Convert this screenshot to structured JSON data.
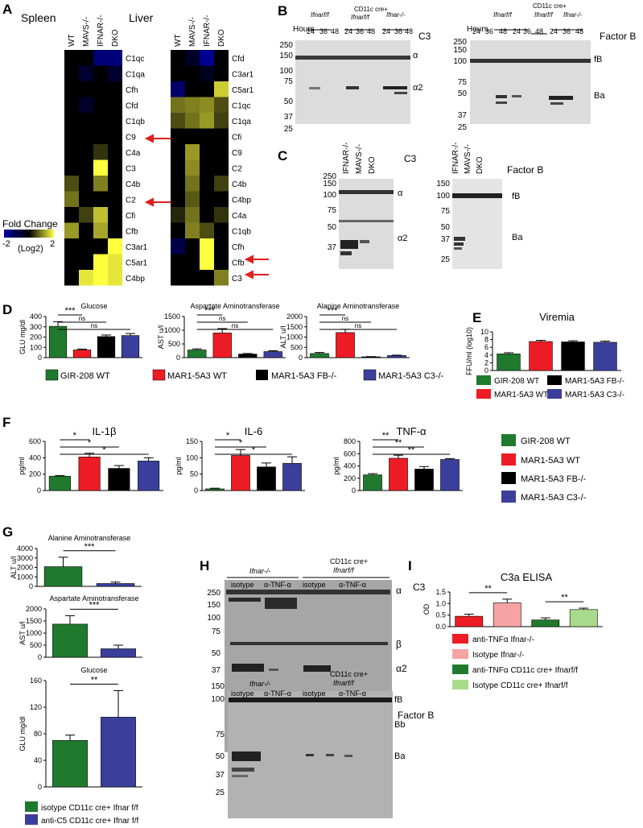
{
  "panels": {
    "A": "A",
    "B": "B",
    "C": "C",
    "D": "D",
    "E": "E",
    "F": "F",
    "G": "G",
    "H": "H",
    "I": "I"
  },
  "heatmap": {
    "spleen_title": "Spleen",
    "liver_title": "Liver",
    "columns": [
      "WT",
      "MAVS-/-",
      "IFNAR-/-",
      "DKO"
    ],
    "spleen_rows": [
      "C1qc",
      "C1qa",
      "Cfh",
      "Cfd",
      "C1qb",
      "C9",
      "C4a",
      "C3",
      "C4b",
      "C2",
      "Cfi",
      "Cfb",
      "C3ar1",
      "C5ar1",
      "C4bp"
    ],
    "liver_rows": [
      "Cfd",
      "C3ar1",
      "C5ar1",
      "C1qc",
      "C1qa",
      "Cfi",
      "C9",
      "C2",
      "C4b",
      "C4bp",
      "C4a",
      "C1qb",
      "Cfh",
      "Cfb",
      "C3"
    ],
    "spleen_values": [
      [
        0,
        0,
        -1.5,
        -1.5
      ],
      [
        0,
        -0.6,
        0,
        -0.6
      ],
      [
        0,
        0,
        0,
        0
      ],
      [
        0,
        -0.5,
        0,
        0
      ],
      [
        0,
        0,
        0,
        0
      ],
      [
        0,
        0,
        0,
        0
      ],
      [
        0,
        0,
        0.4,
        0
      ],
      [
        0,
        0,
        2,
        0
      ],
      [
        0.6,
        0,
        1,
        0
      ],
      [
        0.9,
        0,
        0,
        0
      ],
      [
        0,
        0.5,
        1.5,
        0
      ],
      [
        1.2,
        0,
        1.3,
        0
      ],
      [
        0,
        0,
        0,
        2
      ],
      [
        0,
        0,
        2,
        1.8
      ],
      [
        0,
        1.8,
        2,
        1.8
      ]
    ],
    "liver_values": [
      [
        0,
        -0.5,
        -1.8,
        0
      ],
      [
        0,
        0,
        -0.4,
        0
      ],
      [
        -1.3,
        0,
        0,
        1.6
      ],
      [
        0.9,
        1.0,
        1.1,
        0.6
      ],
      [
        0.6,
        0.9,
        1.2,
        0.5
      ],
      [
        0,
        0,
        0,
        0
      ],
      [
        0,
        1.2,
        0,
        0
      ],
      [
        0,
        1.1,
        0,
        0
      ],
      [
        0,
        0.9,
        0,
        0.5
      ],
      [
        0,
        0.7,
        0,
        0
      ],
      [
        0.3,
        0.9,
        0,
        0.4
      ],
      [
        0,
        1.0,
        0.6,
        0
      ],
      [
        -0.9,
        0,
        2,
        0
      ],
      [
        0,
        0,
        2,
        0
      ],
      [
        0,
        0,
        0,
        1.0
      ]
    ],
    "fold_change_title": "Fold Change",
    "scale_min": "-2",
    "scale_max": "2",
    "scale_unit": "(Log2)"
  },
  "blots": {
    "B_c3": {
      "label": "C3",
      "hours_label": "Hours",
      "hours": [
        "24",
        "36",
        "48"
      ],
      "groups": [
        "Ifnarf/f",
        "CD11c cre+ Ifnarf/f",
        "Ifnar-/-"
      ],
      "markers": [
        "250",
        "150",
        "100",
        "75",
        "50",
        "37",
        "25"
      ],
      "bands": [
        "α",
        "α2"
      ]
    },
    "B_fb": {
      "label": "Factor B",
      "hours_label": "Hours",
      "hours": [
        "24",
        "36",
        "48"
      ],
      "groups": [
        "Ifnarf/f",
        "CD11c cre+ Ifnarf/f",
        "Ifnar-/-"
      ],
      "markers": [
        "250",
        "150",
        "100",
        "75",
        "50",
        "37",
        "25"
      ],
      "bands": [
        "fB",
        "Ba"
      ]
    },
    "C_c3": {
      "label": "C3",
      "lanes": [
        "IFNAR-/-",
        "MAVS-/-",
        "DKO"
      ],
      "markers": [
        "250",
        "150",
        "100",
        "75",
        "50",
        "37"
      ],
      "bands": [
        "α",
        "α2"
      ]
    },
    "C_fb": {
      "label": "Factor B",
      "lanes": [
        "IFNAR-/-",
        "MAVS-/-",
        "DKO"
      ],
      "markers": [
        "150",
        "100",
        "75",
        "50",
        "37",
        "25"
      ],
      "bands": [
        "fB",
        "Ba"
      ]
    },
    "H_c3": {
      "label": "C3",
      "groups": [
        "Ifnar-/-",
        "CD11c cre+ Ifnarf/f"
      ],
      "lanes": [
        "isotype",
        "α-TNF-α",
        "isotype",
        "α-TNF-α"
      ],
      "markers": [
        "250",
        "150",
        "100",
        "75",
        "50",
        "37"
      ],
      "bands": [
        "α",
        "β",
        "α2"
      ]
    },
    "H_fb": {
      "label": "Factor B",
      "groups": [
        "Ifnar-/-",
        "CD11c cre+ Ifnarf/f"
      ],
      "lanes": [
        "isotype",
        "α-TNF-α",
        "isotype",
        "α-TNF-α"
      ],
      "markers": [
        "150",
        "100",
        "75",
        "50",
        "37",
        "25"
      ],
      "bands": [
        "fB",
        "Bb",
        "Ba"
      ]
    }
  },
  "colors": {
    "green": "#1f7a2e",
    "red": "#ee1c24",
    "black": "#000000",
    "blue": "#3b3f9c",
    "pink": "#f5a3a3",
    "lightgreen": "#a9d98a"
  },
  "legends": {
    "D": [
      "GIR-208 WT",
      "MAR1-5A3 WT",
      "MAR1-5A3 FB-/-",
      "MAR1-5A3 C3-/-"
    ],
    "E": [
      "GIR-208 WT",
      "MAR1-5A3 FB-/-",
      "MAR1-5A3 WT",
      "MAR1-5A3 C3-/-"
    ],
    "F": [
      "GIR-208 WT",
      "MAR1-5A3 WT",
      "MAR1-5A3 FB-/-",
      "MAR1-5A3 C3-/-"
    ],
    "G": [
      "isotype CD11c cre+ Ifnar f/f",
      "anti-C5 CD11c cre+ Ifnar f/f"
    ],
    "I": [
      "anti-TNFα Ifnar-/-",
      "Isotype Ifnar-/-",
      "anti-TNFα CD11c cre+ Ifnarf/f",
      "Isotype CD11c cre+ Ifnarf/f"
    ]
  },
  "chart_data": [
    {
      "id": "D1",
      "type": "bar",
      "title": "Glucose",
      "ylabel": "GLU mg/dl",
      "ylim": [
        0,
        400
      ],
      "yticks": [
        "0",
        "100",
        "200",
        "300",
        "400"
      ],
      "categories": [
        "GIR-208 WT",
        "MAR1-5A3 WT",
        "MAR1-5A3 FB-/-",
        "MAR1-5A3 C3-/-"
      ],
      "values": [
        305,
        75,
        205,
        215
      ],
      "errors": [
        45,
        8,
        15,
        20
      ],
      "annotations": [
        "***",
        "ns",
        "ns"
      ]
    },
    {
      "id": "D2",
      "type": "bar",
      "title": "Aspartate Aminotransferase",
      "ylabel": "AST u/l",
      "ylim": [
        0,
        1500
      ],
      "yticks": [
        "0",
        "500",
        "1000",
        "1500"
      ],
      "categories": [
        "GIR-208 WT",
        "MAR1-5A3 WT",
        "MAR1-5A3 FB-/-",
        "MAR1-5A3 C3-/-"
      ],
      "values": [
        280,
        900,
        130,
        220
      ],
      "errors": [
        40,
        160,
        20,
        30
      ],
      "annotations": [
        "***",
        "ns",
        "ns"
      ]
    },
    {
      "id": "D3",
      "type": "bar",
      "title": "Alanine Aminotransferase",
      "ylabel": "ALT u/l",
      "ylim": [
        0,
        2000
      ],
      "yticks": [
        "0",
        "500",
        "1000",
        "1500",
        "2000"
      ],
      "categories": [
        "GIR-208 WT",
        "MAR1-5A3 WT",
        "MAR1-5A3 FB-/-",
        "MAR1-5A3 C3-/-"
      ],
      "values": [
        200,
        1220,
        40,
        100
      ],
      "errors": [
        50,
        160,
        10,
        20
      ],
      "annotations": [
        "***",
        "ns",
        "ns"
      ]
    },
    {
      "id": "E",
      "type": "bar",
      "title": "Viremia",
      "ylabel": "FFU/ml (log10)",
      "ylim": [
        0,
        10
      ],
      "yticks": [
        "0",
        "2",
        "4",
        "6",
        "8",
        "10"
      ],
      "categories": [
        "GIR-208 WT",
        "MAR1-5A3 WT",
        "MAR1-5A3 FB-/-",
        "MAR1-5A3 C3-/-"
      ],
      "values": [
        4.3,
        7.5,
        7.4,
        7.3
      ],
      "errors": [
        0.3,
        0.3,
        0.3,
        0.3
      ],
      "annotations": []
    },
    {
      "id": "F1",
      "type": "bar",
      "title": "IL-1β",
      "ylabel": "pg/ml",
      "ylim": [
        0,
        600
      ],
      "yticks": [
        "0",
        "200",
        "400",
        "600"
      ],
      "categories": [
        "GIR-208 WT",
        "MAR1-5A3 WT",
        "MAR1-5A3 FB-/-",
        "MAR1-5A3 C3-/-"
      ],
      "values": [
        175,
        410,
        270,
        360
      ],
      "errors": [
        8,
        45,
        35,
        40
      ],
      "annotations": [
        "*",
        "*",
        "*"
      ]
    },
    {
      "id": "F2",
      "type": "bar",
      "title": "IL-6",
      "ylabel": "pg/ml",
      "ylim": [
        0,
        150
      ],
      "yticks": [
        "0",
        "50",
        "100",
        "150"
      ],
      "categories": [
        "GIR-208 WT",
        "MAR1-5A3 WT",
        "MAR1-5A3 FB-/-",
        "MAR1-5A3 C3-/-"
      ],
      "values": [
        5,
        107,
        72,
        83
      ],
      "errors": [
        2,
        18,
        12,
        20
      ],
      "annotations": [
        "*",
        "*",
        "*"
      ]
    },
    {
      "id": "F3",
      "type": "bar",
      "title": "TNF-α",
      "ylabel": "pg/ml",
      "ylim": [
        0,
        800
      ],
      "yticks": [
        "0",
        "200",
        "400",
        "600",
        "800"
      ],
      "categories": [
        "GIR-208 WT",
        "MAR1-5A3 WT",
        "MAR1-5A3 FB-/-",
        "MAR1-5A3 C3-/-"
      ],
      "values": [
        255,
        525,
        350,
        505
      ],
      "errors": [
        20,
        50,
        40,
        15
      ],
      "annotations": [
        "**",
        "**",
        "**"
      ]
    },
    {
      "id": "G1",
      "type": "bar",
      "title": "Alanine Aminotransferase",
      "ylabel": "ALT u/l",
      "ylim": [
        0,
        4000
      ],
      "yticks": [
        "0",
        "1000",
        "2000",
        "3000",
        "4000"
      ],
      "categories": [
        "isotype CD11c cre+ Ifnar f/f",
        "anti-C5 CD11c cre+ Ifnar f/f"
      ],
      "values": [
        2080,
        300
      ],
      "errors": [
        1000,
        150
      ],
      "annotations": [
        "***"
      ]
    },
    {
      "id": "G2",
      "type": "bar",
      "title": "Aspartate Aminotransferase",
      "ylabel": "AST u/l",
      "ylim": [
        0,
        2000
      ],
      "yticks": [
        "0",
        "500",
        "1000",
        "1500",
        "2000"
      ],
      "categories": [
        "isotype CD11c cre+ Ifnar f/f",
        "anti-C5 CD11c cre+ Ifnar f/f"
      ],
      "values": [
        1370,
        350
      ],
      "errors": [
        350,
        150
      ],
      "annotations": [
        "***"
      ]
    },
    {
      "id": "G3",
      "type": "bar",
      "title": "Glucose",
      "ylabel": "GLU mg/dl",
      "ylim": [
        0,
        160
      ],
      "yticks": [
        "0",
        "40",
        "80",
        "120",
        "160"
      ],
      "categories": [
        "isotype CD11c cre+ Ifnar f/f",
        "anti-C5 CD11c cre+ Ifnar f/f"
      ],
      "values": [
        70,
        105
      ],
      "errors": [
        8,
        40
      ],
      "annotations": [
        "**"
      ]
    },
    {
      "id": "I",
      "type": "bar",
      "title": "C3a ELISA",
      "ylabel": "OD",
      "ylim": [
        0,
        1.5
      ],
      "yticks": [
        "0.0",
        "0.5",
        "1.0",
        "1.5"
      ],
      "categories": [
        "anti-TNFα Ifnar-/-",
        "Isotype Ifnar-/-",
        "anti-TNFα CD11c cre+ Ifnarf/f",
        "Isotype CD11c cre+ Ifnarf/f"
      ],
      "values": [
        0.45,
        1.03,
        0.29,
        0.74
      ],
      "errors": [
        0.09,
        0.16,
        0.09,
        0.06
      ],
      "annotations": [
        "**",
        "**"
      ]
    }
  ]
}
